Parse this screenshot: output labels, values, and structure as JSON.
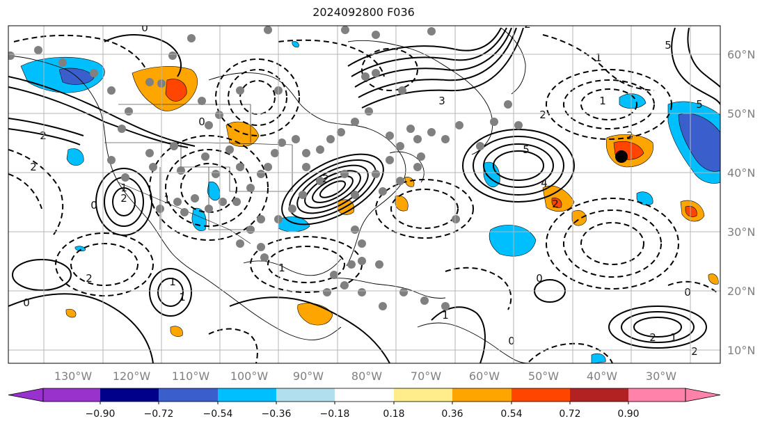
{
  "title": "2024092800 F036",
  "map": {
    "lon_labels": [
      "130°W",
      "120°W",
      "110°W",
      "100°W",
      "90°W",
      "80°W",
      "70°W",
      "60°W",
      "50°W",
      "40°W",
      "30°W"
    ],
    "lat_labels": [
      "60°N",
      "50°N",
      "40°N",
      "30°N",
      "20°N",
      "10°N"
    ],
    "grid_color": "#b5b5b5",
    "contour_color": "#000000",
    "contour_labels": [
      "0",
      "2",
      "2",
      "0",
      "0",
      "2",
      "1",
      "1",
      "2",
      "1",
      "1",
      "0",
      "2",
      "5",
      "4",
      "1",
      "3",
      "2",
      "1",
      "5",
      "1",
      "2",
      "0",
      "2",
      "2",
      "0",
      "5",
      "2",
      "2",
      "1",
      "1",
      "0"
    ]
  },
  "colorbar": {
    "ticks": [
      "−0.90",
      "−0.72",
      "−0.54",
      "−0.36",
      "−0.18",
      "0.18",
      "0.36",
      "0.54",
      "0.72",
      "0.90"
    ],
    "colors": [
      "#9932cc",
      "#00008b",
      "#3a5fcd",
      "#00bfff",
      "#b2dfee",
      "#ffffff",
      "#ffec8b",
      "#ffa500",
      "#ff4500",
      "#b22222",
      "#ff82ab"
    ]
  }
}
